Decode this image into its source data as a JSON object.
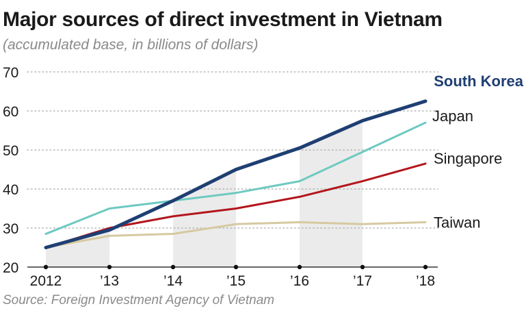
{
  "chart_data": {
    "type": "line",
    "title": "Major sources of direct investment in Vietnam",
    "subtitle": "(accumulated base, in billions of dollars)",
    "source": "Source: Foreign Investment Agency of Vietnam",
    "categories": [
      "2012",
      "’13",
      "’14",
      "’15",
      "’16",
      "’17",
      "’18"
    ],
    "ylim": [
      20,
      70
    ],
    "yticks": [
      20,
      30,
      40,
      50,
      60,
      70
    ],
    "grid": true,
    "series": [
      {
        "name": "Taiwan",
        "color": "#d6c9a0",
        "values": [
          25,
          28,
          28.5,
          31,
          31.5,
          31,
          31.5
        ]
      },
      {
        "name": "Singapore",
        "color": "#b3151c",
        "values": [
          25,
          30,
          33,
          35,
          38,
          42,
          46.5
        ]
      },
      {
        "name": "Japan",
        "color": "#6ec9c1",
        "values": [
          28.5,
          35,
          37,
          39,
          42,
          49.5,
          57
        ]
      },
      {
        "name": "South Korea",
        "color": "#1f3f73",
        "values": [
          25,
          29.5,
          37,
          45,
          50.5,
          57.5,
          62.5
        ],
        "bold": true
      }
    ]
  }
}
